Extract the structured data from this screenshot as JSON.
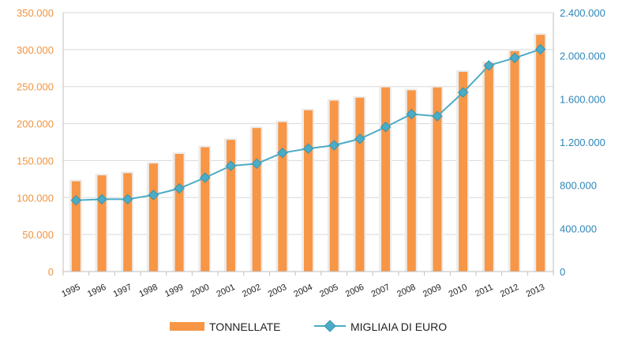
{
  "chart_data": {
    "type": "bar",
    "categories": [
      "1995",
      "1996",
      "1997",
      "1998",
      "1999",
      "2000",
      "2001",
      "2002",
      "2003",
      "2004",
      "2005",
      "2006",
      "2007",
      "2008",
      "2009",
      "2010",
      "2011",
      "2012",
      "2013"
    ],
    "series": [
      {
        "name": "TONNELLATE",
        "type": "bar",
        "axis": "left",
        "color": "#f79646",
        "values": [
          122000,
          130000,
          133000,
          146000,
          159000,
          168000,
          178000,
          194000,
          202000,
          218000,
          231000,
          235000,
          249000,
          245000,
          249000,
          270000,
          282000,
          298000,
          320000
        ]
      },
      {
        "name": "MIGLIAIA DI EURO",
        "type": "line",
        "axis": "right",
        "color": "#4bacc6",
        "values": [
          660000,
          670000,
          670000,
          710000,
          770000,
          870000,
          980000,
          1000000,
          1100000,
          1140000,
          1170000,
          1230000,
          1340000,
          1460000,
          1440000,
          1660000,
          1910000,
          1980000,
          2060000
        ]
      }
    ],
    "y_left": {
      "ylim": [
        0,
        350000
      ],
      "ticks": [
        "0",
        "50.000",
        "100.000",
        "150.000",
        "200.000",
        "250.000",
        "300.000",
        "350.000"
      ],
      "color": "#f0943f"
    },
    "y_right": {
      "ylim": [
        0,
        2400000
      ],
      "ticks": [
        "0",
        "400.000",
        "800.000",
        "1.200.000",
        "1.600.000",
        "2.000.000",
        "2.400.000"
      ],
      "color": "#2e86b8"
    },
    "grid": true,
    "legend_position": "bottom-center",
    "title": "",
    "xlabel": "",
    "ylabel": ""
  }
}
